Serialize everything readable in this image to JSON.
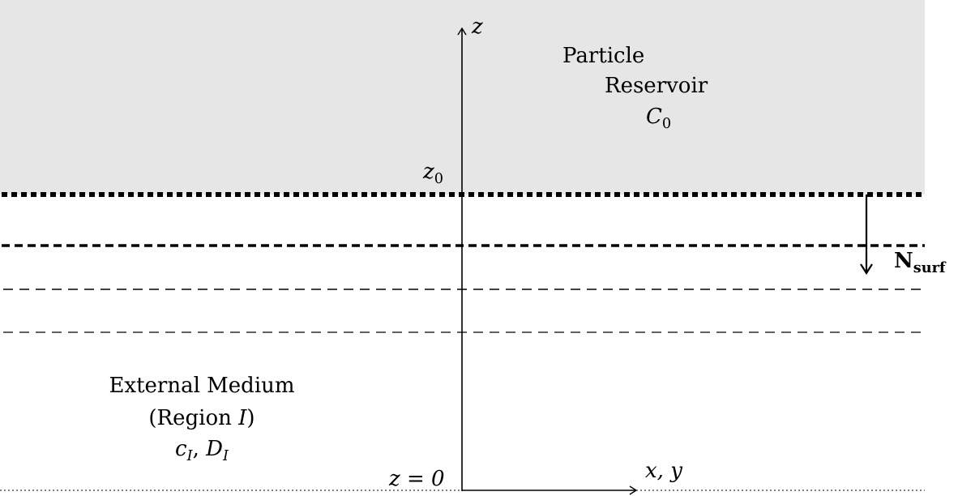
{
  "reservoir": {
    "line1": "Particle",
    "line2": "Reservoir",
    "concentration_symbol": "C",
    "concentration_sub": "0"
  },
  "external_medium": {
    "line1": "External Medium",
    "line2_prefix": "(Region ",
    "line2_symbol": "I",
    "line2_suffix": ")",
    "c_symbol": "c",
    "c_sub": "I",
    "separator": ", ",
    "d_symbol": "D",
    "d_sub": "I"
  },
  "axes": {
    "z_label": "z",
    "horizontal_label": "x, y",
    "z0_symbol": "z",
    "z0_sub": "0",
    "origin_label": "z = 0"
  },
  "flux": {
    "symbol": "N",
    "sub": "surf"
  },
  "colors": {
    "reservoir_fill": "#e6e6e6",
    "lines": "#000000"
  }
}
